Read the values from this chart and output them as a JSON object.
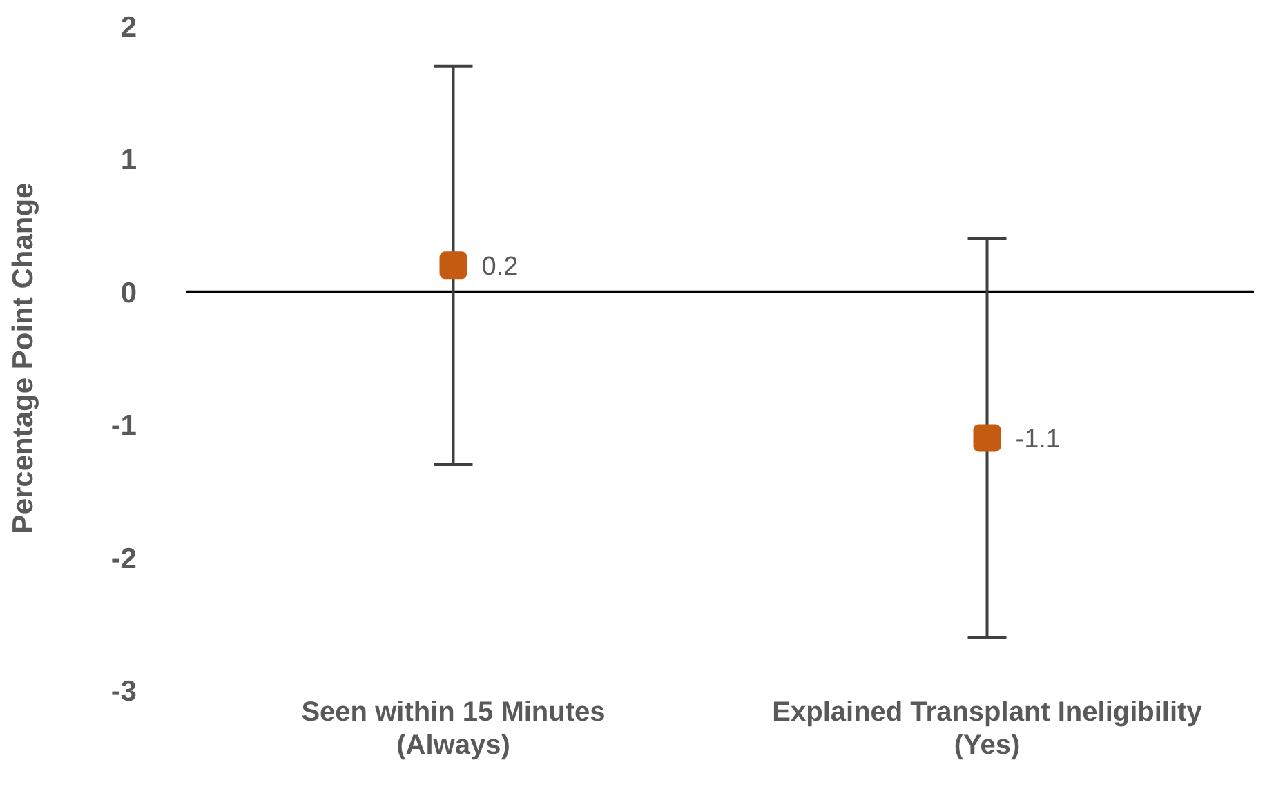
{
  "chart_data": {
    "type": "scatter",
    "ylabel": "Percentage Point Change",
    "categories": [
      "Seen within 15 Minutes\n(Always)",
      "Explained Transplant Ineligibility\n(Yes)"
    ],
    "values": [
      0.2,
      -1.1
    ],
    "errors": [
      [
        -1.3,
        1.7
      ],
      [
        -2.6,
        0.4
      ]
    ],
    "color": "#c55a11",
    "marker": "square",
    "data_labels": true,
    "legend": false,
    "ref_lines": [
      {
        "axis": "y",
        "value": 0,
        "color": "#000000"
      }
    ],
    "ylim": [
      -3,
      2
    ],
    "yticks": [
      -3,
      -2,
      -1,
      0,
      1,
      2
    ]
  }
}
